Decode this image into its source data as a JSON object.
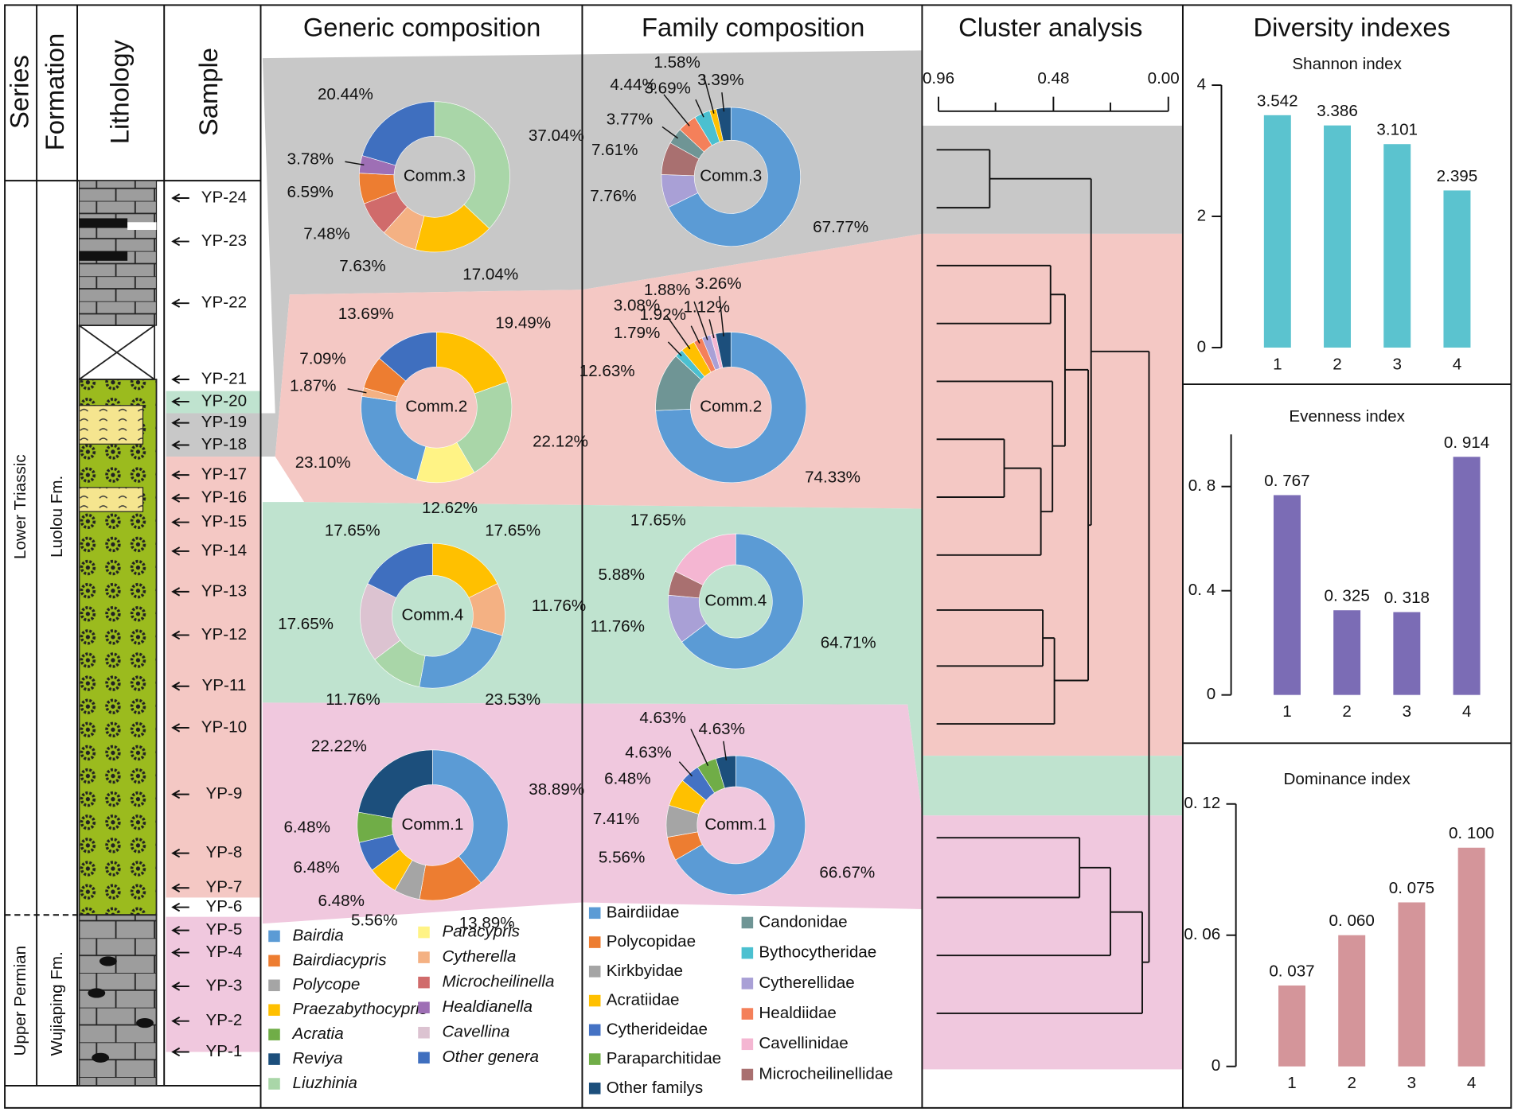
{
  "headers": {
    "series": "Series",
    "formation": "Formation",
    "lithology": "Lithology",
    "sample": "Sample",
    "generic": "Generic composition",
    "family": "Family composition",
    "cluster": "Cluster analysis",
    "diversity": "Diversity indexes"
  },
  "series_units": [
    "Lower Triassic",
    "Upper Permian"
  ],
  "formations": [
    "Luolou Fm.",
    "Wujiaping Fm."
  ],
  "samples": [
    "YP-24",
    "YP-23",
    "YP-22",
    "YP-21",
    "YP-20",
    "YP-19",
    "YP-18",
    "YP-17",
    "YP-16",
    "YP-15",
    "YP-14",
    "YP-13",
    "YP-12",
    "YP-11",
    "YP-10",
    "YP-9",
    "YP-8",
    "YP-7",
    "YP-6",
    "YP-5",
    "YP-4",
    "YP-3",
    "YP-2",
    "YP-1"
  ],
  "cluster_scale": [
    "0.96",
    "0.48",
    "0.00"
  ],
  "generic_legend": [
    {
      "name": "Bairdia",
      "color": "#5b9bd5"
    },
    {
      "name": "Bairdiacypris",
      "color": "#ed7d31"
    },
    {
      "name": "Polycope",
      "color": "#a5a5a5"
    },
    {
      "name": "Praezabythocypris",
      "color": "#ffc000"
    },
    {
      "name": "Acratia",
      "color": "#70ad47"
    },
    {
      "name": "Reviya",
      "color": "#1c4f7c"
    },
    {
      "name": "Liuzhinia",
      "color": "#a9d6a8"
    },
    {
      "name": "Paracypris",
      "color": "#fff385"
    },
    {
      "name": "Cytherella",
      "color": "#f4b183"
    },
    {
      "name": "Microcheilinella",
      "color": "#d06b6b"
    },
    {
      "name": "Healdianella",
      "color": "#9e6fb5"
    },
    {
      "name": "Cavellina",
      "color": "#dcc3d1"
    },
    {
      "name": "Other genera",
      "color": "#3f6fbf"
    }
  ],
  "family_legend": [
    {
      "name": "Bairdiidae",
      "color": "#5b9bd5"
    },
    {
      "name": "Polycopidae",
      "color": "#ed7d31"
    },
    {
      "name": "Kirkbyidae",
      "color": "#a5a5a5"
    },
    {
      "name": "Acratiidae",
      "color": "#ffc000"
    },
    {
      "name": "Cytherideidae",
      "color": "#4472c4"
    },
    {
      "name": "Paraparchitidae",
      "color": "#70ad47"
    },
    {
      "name": "Other familys",
      "color": "#1c4f7c"
    },
    {
      "name": "Candonidae",
      "color": "#6f9595"
    },
    {
      "name": "Bythocytheridae",
      "color": "#4bc0d0"
    },
    {
      "name": "Cytherellidae",
      "color": "#a9a0d6"
    },
    {
      "name": "Healdiidae",
      "color": "#f4805a"
    },
    {
      "name": "Cavellinidae",
      "color": "#f4b6d2"
    },
    {
      "name": "Microcheilinellidae",
      "color": "#a97070"
    }
  ],
  "chart_data": [
    {
      "type": "pie",
      "center_label": "Comm.3",
      "values": [
        37.04,
        17.04,
        7.63,
        7.48,
        6.59,
        3.78,
        20.44
      ],
      "value_labels": [
        "37.04%",
        "17.04%",
        "7.63%",
        "7.48%",
        "6.59%",
        "3.78%",
        "20.44%"
      ],
      "colors": [
        "#a9d6a8",
        "#ffc000",
        "#f4b183",
        "#d06b6b",
        "#ed7d31",
        "#9e6fb5",
        "#3f6fbf"
      ]
    },
    {
      "type": "pie",
      "center_label": "Comm.2",
      "values": [
        19.49,
        22.12,
        12.62,
        23.1,
        1.87,
        7.09,
        13.69
      ],
      "value_labels": [
        "19.49%",
        "22.12%",
        "12.62%",
        "23.10%",
        "1.87%",
        "7.09%",
        "13.69%"
      ],
      "colors": [
        "#ffc000",
        "#a9d6a8",
        "#fff385",
        "#5b9bd5",
        "#f4b183",
        "#ed7d31",
        "#3f6fbf"
      ]
    },
    {
      "type": "pie",
      "center_label": "Comm.4",
      "values": [
        17.65,
        11.76,
        23.53,
        11.76,
        17.65,
        17.65
      ],
      "value_labels": [
        "17.65%",
        "11.76%",
        "23.53%",
        "11.76%",
        "17.65%",
        "17.65%"
      ],
      "colors": [
        "#ffc000",
        "#f4b183",
        "#5b9bd5",
        "#a9d6a8",
        "#dcc3d1",
        "#3f6fbf"
      ]
    },
    {
      "type": "pie",
      "center_label": "Comm.1",
      "values": [
        38.89,
        13.89,
        5.56,
        6.48,
        6.48,
        6.48,
        22.22
      ],
      "value_labels": [
        "38.89%",
        "13.89%",
        "5.56%",
        "6.48%",
        "6.48%",
        "6.48%",
        "22.22%"
      ],
      "colors": [
        "#5b9bd5",
        "#ed7d31",
        "#a5a5a5",
        "#ffc000",
        "#3f6fbf",
        "#70ad47",
        "#1c4f7c"
      ]
    },
    {
      "type": "pie",
      "center_label": "Comm.3",
      "values": [
        67.77,
        7.76,
        7.61,
        3.77,
        4.44,
        3.69,
        1.58,
        3.39
      ],
      "value_labels": [
        "67.77%",
        "7.76%",
        "7.61%",
        "3.77%",
        "4.44%",
        "3.69%",
        "1.58%",
        "3.39%"
      ],
      "colors": [
        "#5b9bd5",
        "#a9a0d6",
        "#a97070",
        "#6f9595",
        "#f4805a",
        "#4bc0d0",
        "#ffc000",
        "#1c4f7c"
      ]
    },
    {
      "type": "pie",
      "center_label": "Comm.2",
      "values": [
        74.33,
        12.63,
        1.79,
        3.08,
        1.92,
        1.88,
        1.12,
        3.26
      ],
      "value_labels": [
        "74.33%",
        "12.63%",
        "1.79%",
        "3.08%",
        "1.92%",
        "1.88%",
        "1.12%",
        "3.26%"
      ],
      "colors": [
        "#5b9bd5",
        "#6f9595",
        "#4bc0d0",
        "#ffc000",
        "#f4805a",
        "#a9a0d6",
        "#f4b6d2",
        "#1c4f7c"
      ]
    },
    {
      "type": "pie",
      "center_label": "Comm.4",
      "values": [
        64.71,
        11.76,
        5.88,
        17.65
      ],
      "value_labels": [
        "64.71%",
        "11.76%",
        "5.88%",
        "17.65%"
      ],
      "colors": [
        "#5b9bd5",
        "#a9a0d6",
        "#a97070",
        "#f4b6d2"
      ]
    },
    {
      "type": "pie",
      "center_label": "Comm.1",
      "values": [
        66.67,
        5.56,
        7.41,
        6.48,
        4.63,
        4.63,
        4.63
      ],
      "value_labels": [
        "66.67%",
        "5.56%",
        "7.41%",
        "6.48%",
        "4.63%",
        "4.63%",
        "4.63%"
      ],
      "colors": [
        "#5b9bd5",
        "#ed7d31",
        "#a5a5a5",
        "#ffc000",
        "#4472c4",
        "#70ad47",
        "#1c4f7c"
      ]
    },
    {
      "type": "bar",
      "title": "Shannon index",
      "categories": [
        "1",
        "2",
        "3",
        "4"
      ],
      "values": [
        3.542,
        3.386,
        3.101,
        2.395
      ],
      "color": "#5bc3cf",
      "ylim": [
        0,
        4
      ],
      "yticks": [
        0,
        2,
        4
      ]
    },
    {
      "type": "bar",
      "title": "Evenness index",
      "categories": [
        "1",
        "2",
        "3",
        "4"
      ],
      "values": [
        0.767,
        0.325,
        0.318,
        0.914
      ],
      "value_labels": [
        "0. 767",
        "0. 325",
        "0. 318",
        "0. 914"
      ],
      "color": "#7b6cb5",
      "ylim": [
        0,
        1
      ],
      "yticks": [
        0,
        {
          "value": 0.4,
          "label": "0. 4"
        },
        {
          "value": 0.8,
          "label": "0. 8"
        }
      ]
    },
    {
      "type": "bar",
      "title": "Dominance index",
      "categories": [
        "1",
        "2",
        "3",
        "4"
      ],
      "values": [
        0.037,
        0.06,
        0.075,
        0.1
      ],
      "value_labels": [
        "0. 037",
        "0. 060",
        "0. 075",
        "0. 100"
      ],
      "color": "#d4959a",
      "ylim": [
        0,
        0.12
      ],
      "yticks": [
        0,
        {
          "value": 0.06,
          "label": "0. 06"
        },
        {
          "value": 0.12,
          "label": "0. 12"
        }
      ]
    }
  ]
}
